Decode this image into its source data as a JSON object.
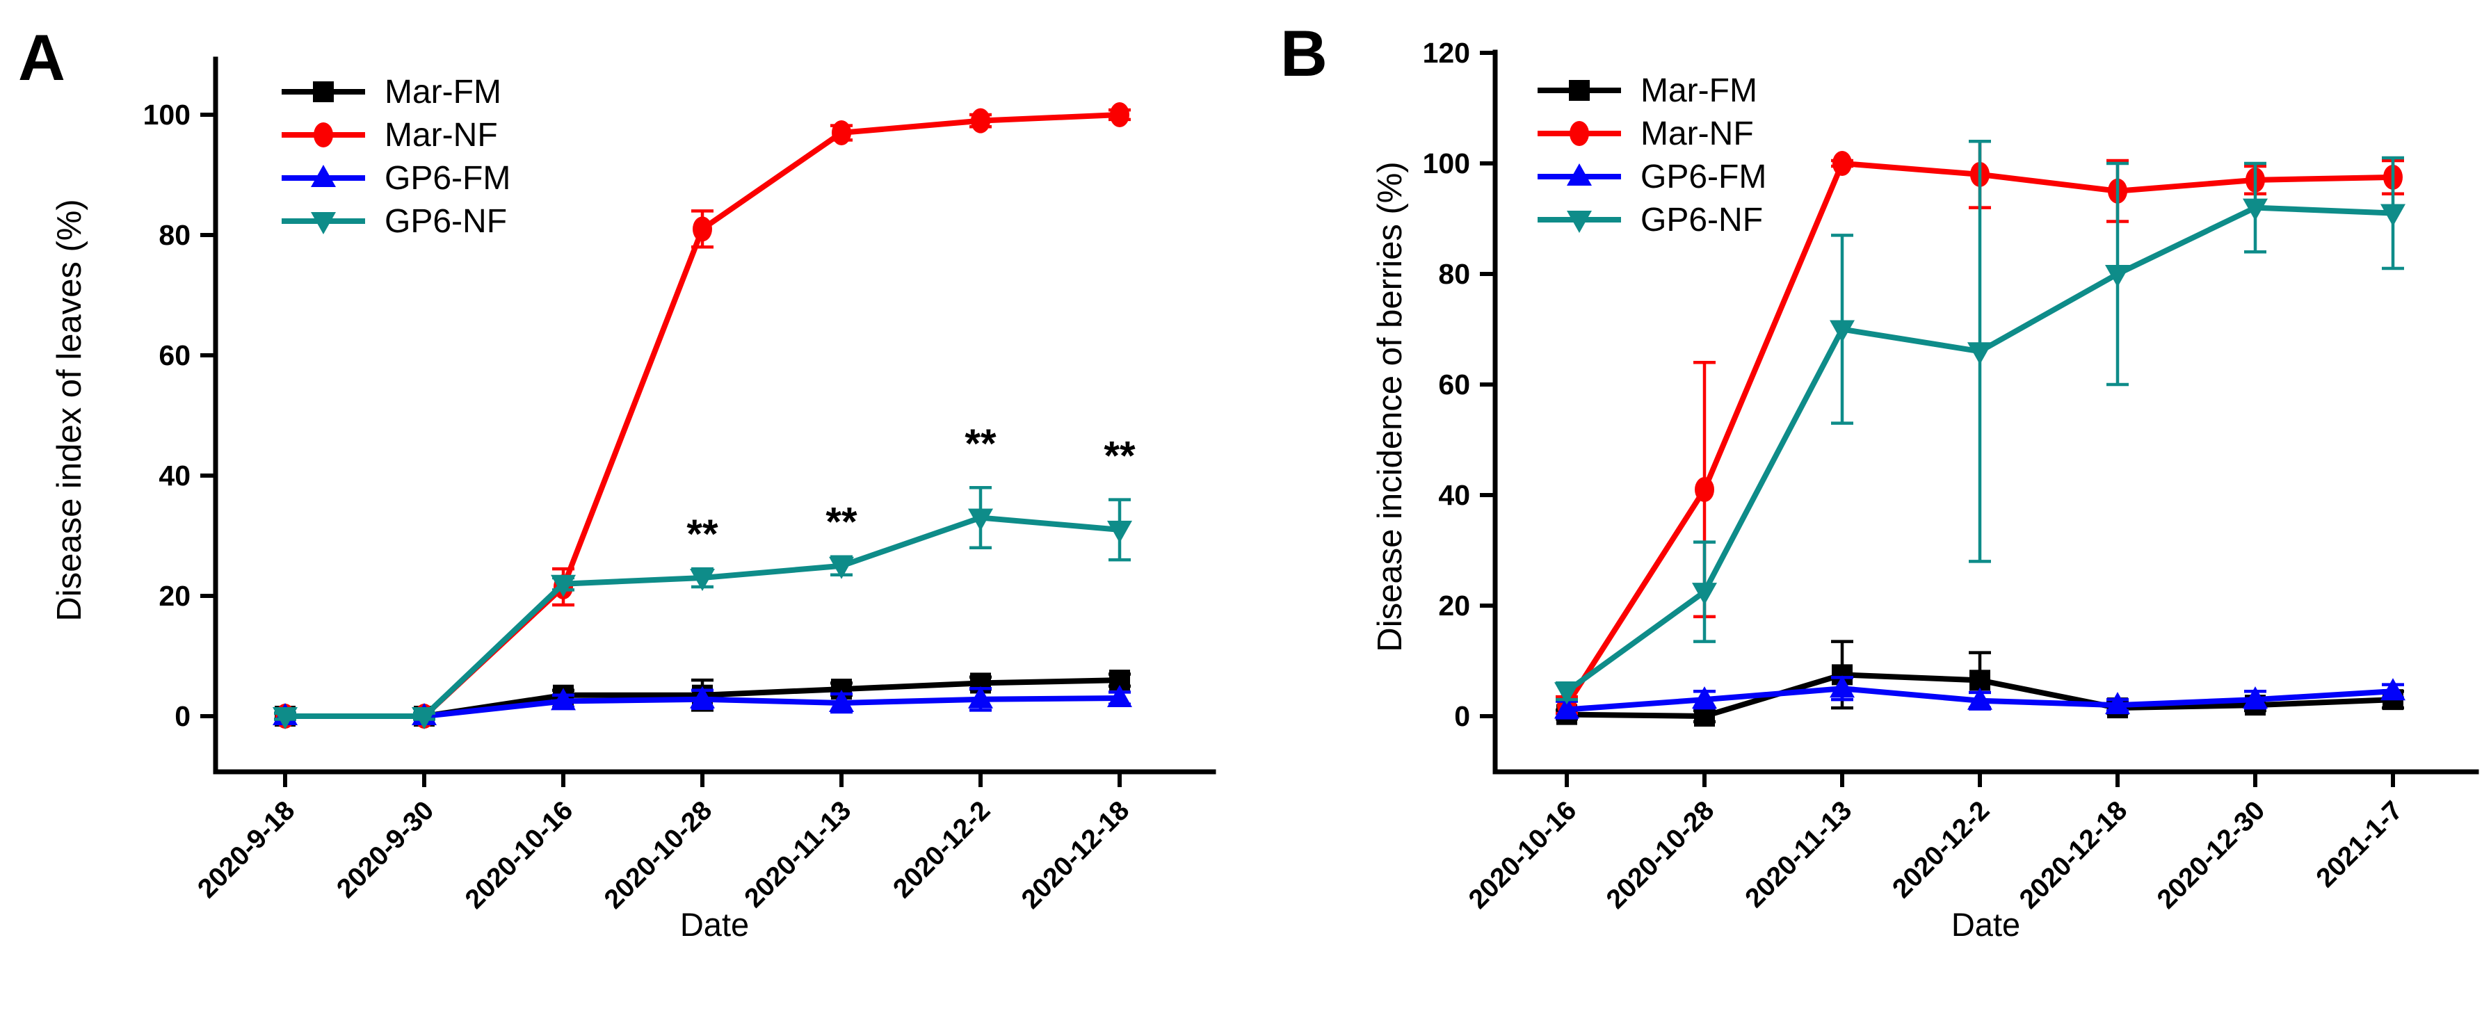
{
  "figure": {
    "background": "#ffffff",
    "panel_letters": [
      "A",
      "B"
    ]
  },
  "chart_data": [
    {
      "panel_letter": "A",
      "type": "line",
      "title": "",
      "xlabel": "Date",
      "ylabel": "Disease index of leaves (%)",
      "ylim": [
        0,
        100
      ],
      "yticks": [
        0,
        20,
        40,
        60,
        80,
        100
      ],
      "grid": false,
      "legend_position": "top-left-inside",
      "error_bars": true,
      "categories": [
        "2020-9-18",
        "2020-9-30",
        "2020-10-16",
        "2020-10-28",
        "2020-11-13",
        "2020-12-2",
        "2020-12-18"
      ],
      "series": [
        {
          "name": "Mar-FM",
          "color": "#000000",
          "marker": "square",
          "values": [
            0,
            0,
            3.5,
            3.5,
            4.5,
            5.5,
            6
          ],
          "errors": [
            0,
            0,
            0.8,
            2.5,
            1,
            1,
            1
          ]
        },
        {
          "name": "Mar-NF",
          "color": "#fb0000",
          "marker": "circle",
          "values": [
            0,
            0,
            21.5,
            81,
            97,
            99,
            100
          ],
          "errors": [
            0.5,
            0,
            3,
            3,
            1.2,
            1,
            0.8
          ]
        },
        {
          "name": "GP6-FM",
          "color": "#0202fa",
          "marker": "triangle-up",
          "values": [
            0,
            0,
            2.5,
            2.8,
            2.2,
            2.8,
            3
          ],
          "errors": [
            0.5,
            0.3,
            1,
            1.5,
            1.5,
            1.8,
            1
          ]
        },
        {
          "name": "GP6-NF",
          "color": "#0e8c89",
          "marker": "triangle-down",
          "values": [
            0,
            0,
            22,
            23,
            25,
            33,
            31
          ],
          "errors": [
            0.5,
            0.5,
            1,
            1.5,
            1.5,
            5,
            5
          ]
        }
      ],
      "annotations": [
        {
          "text": "**",
          "category_index": 3,
          "y": 28,
          "series": "GP6-NF"
        },
        {
          "text": "**",
          "category_index": 4,
          "y": 30,
          "series": "GP6-NF"
        },
        {
          "text": "**",
          "category_index": 5,
          "y": 43,
          "series": "GP6-NF"
        },
        {
          "text": "**",
          "category_index": 6,
          "y": 41,
          "series": "GP6-NF"
        }
      ]
    },
    {
      "panel_letter": "B",
      "type": "line",
      "title": "",
      "xlabel": "Date",
      "ylabel": "Disease incidence of berries (%)",
      "ylim": [
        0,
        120
      ],
      "yticks": [
        0,
        20,
        40,
        60,
        80,
        100,
        120
      ],
      "grid": false,
      "legend_position": "top-left-inside",
      "error_bars": true,
      "categories": [
        "2020-10-16",
        "2020-10-28",
        "2020-11-13",
        "2020-12-2",
        "2020-12-18",
        "2020-12-30",
        "2021-1-7"
      ],
      "series": [
        {
          "name": "Mar-FM",
          "color": "#000000",
          "marker": "square",
          "values": [
            0.3,
            0,
            7.5,
            6.5,
            1.5,
            2,
            3
          ],
          "errors": [
            0.8,
            1,
            6,
            5,
            1,
            1,
            1.5
          ]
        },
        {
          "name": "Mar-NF",
          "color": "#fb0000",
          "marker": "circle",
          "values": [
            2,
            41,
            100,
            98,
            95,
            97,
            97.5
          ],
          "errors": [
            1.5,
            23,
            0.5,
            6,
            5.5,
            2.5,
            3
          ]
        },
        {
          "name": "GP6-FM",
          "color": "#0202fa",
          "marker": "triangle-up",
          "values": [
            1.2,
            3,
            5,
            2.8,
            2,
            3,
            4.5
          ],
          "errors": [
            1.5,
            1.5,
            2,
            1.5,
            1,
            1.5,
            1.2
          ]
        },
        {
          "name": "GP6-NF",
          "color": "#0e8c89",
          "marker": "triangle-down",
          "values": [
            4.5,
            22.5,
            70,
            66,
            80,
            92,
            91
          ],
          "errors": [
            1.5,
            9,
            17,
            38,
            20,
            8,
            10
          ]
        }
      ],
      "annotations": []
    }
  ]
}
